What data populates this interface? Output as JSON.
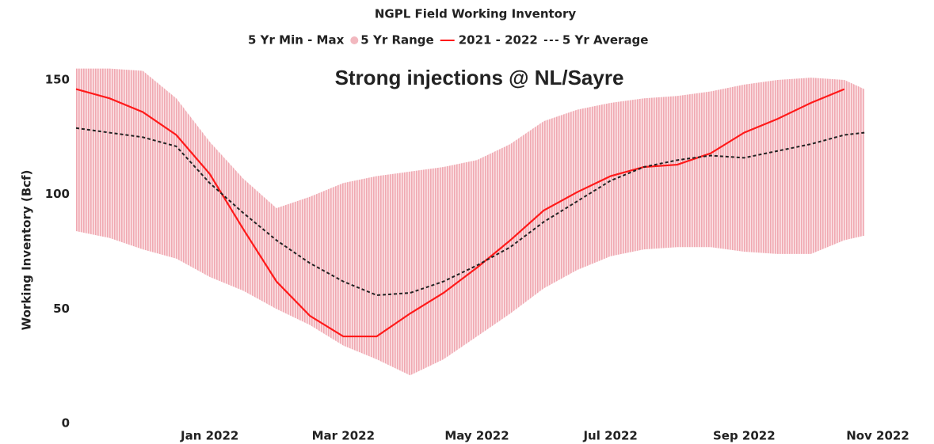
{
  "chart_data": {
    "type": "band-line",
    "title": "NGPL Field Working Inventory",
    "legend_title": "5 Yr Min - Max",
    "annotation": "Strong injections @ NL/Sayre",
    "ylabel": "Working Inventory (Bcf)",
    "x": [
      0,
      0.5,
      1,
      1.5,
      2,
      2.5,
      3,
      3.5,
      4,
      4.5,
      5,
      5.5,
      6,
      6.5,
      7,
      7.5,
      8,
      8.5,
      9,
      9.5,
      10,
      10.5,
      11,
      11.5,
      11.8
    ],
    "xlim": [
      0,
      12
    ],
    "xticks": [
      {
        "value": 2,
        "label": "Jan 2022"
      },
      {
        "value": 4,
        "label": "Mar 2022"
      },
      {
        "value": 6,
        "label": "May 2022"
      },
      {
        "value": 8,
        "label": "Jul 2022"
      },
      {
        "value": 10,
        "label": "Sep 2022"
      },
      {
        "value": 12,
        "label": "Nov 2022"
      }
    ],
    "ylim": [
      0,
      160
    ],
    "yticks": [
      0,
      50,
      100,
      150
    ],
    "band": {
      "name": "5 Yr Range",
      "color": "#f2b8bf",
      "max": [
        155,
        155,
        154,
        142,
        123,
        107,
        94,
        99,
        105,
        108,
        110,
        112,
        115,
        122,
        132,
        137,
        140,
        142,
        143,
        145,
        148,
        150,
        151,
        150,
        146
      ],
      "min": [
        84,
        81,
        76,
        72,
        64,
        58,
        50,
        43,
        34,
        28,
        21,
        28,
        38,
        48,
        59,
        67,
        73,
        76,
        77,
        77,
        75,
        74,
        74,
        80,
        82
      ]
    },
    "series": [
      {
        "name": "2021 - 2022",
        "color": "#ff1a1a",
        "dash": false,
        "values": [
          146,
          142,
          136,
          126,
          109,
          85,
          62,
          47,
          38,
          38,
          48,
          57,
          68,
          80,
          93,
          101,
          108,
          112,
          113,
          118,
          127,
          133,
          140,
          146,
          null
        ]
      },
      {
        "name": "5 Yr Average",
        "color": "#222222",
        "dash": true,
        "values": [
          129,
          127,
          125,
          121,
          105,
          92,
          80,
          70,
          62,
          56,
          57,
          62,
          69,
          77,
          88,
          97,
          106,
          112,
          115,
          117,
          116,
          119,
          122,
          126,
          127
        ]
      }
    ]
  }
}
